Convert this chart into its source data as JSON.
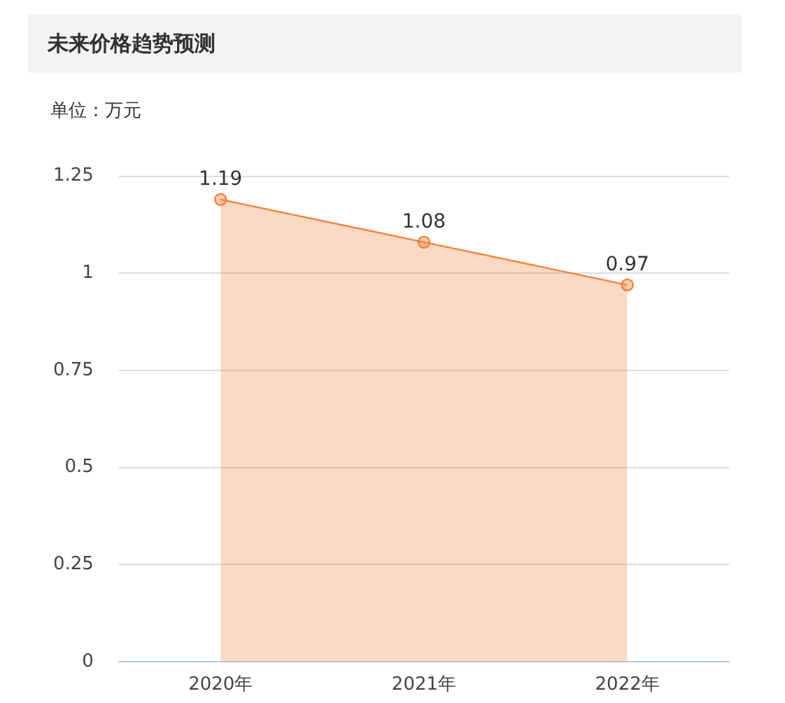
{
  "chart_data": {
    "type": "area",
    "title": "未来价格趋势预测",
    "subtitle": "单位：万元",
    "categories": [
      "2020年",
      "2021年",
      "2022年"
    ],
    "series": [
      {
        "color": "#f5813a",
        "values": [
          1.19,
          1.08,
          0.97
        ]
      }
    ],
    "ylim": [
      0,
      1.25
    ],
    "yticks": [
      0,
      0.25,
      0.5,
      0.75,
      1,
      1.25
    ],
    "grid": "y",
    "marker": "circle",
    "data_labels": true
  }
}
